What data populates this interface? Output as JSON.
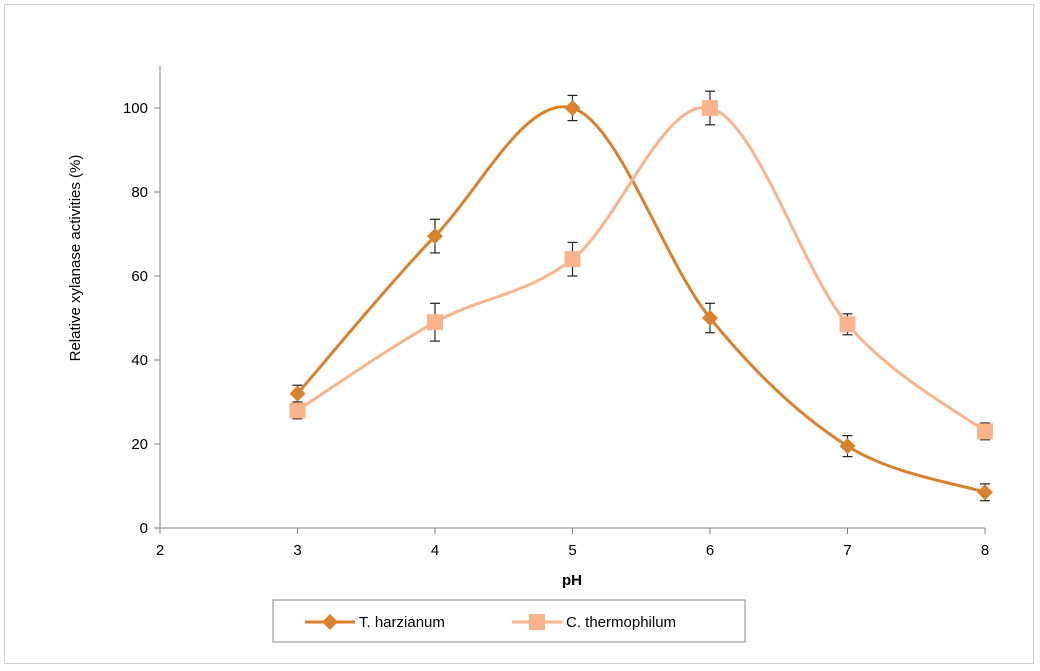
{
  "chart_data": {
    "type": "line",
    "title": "",
    "xlabel": "pH",
    "ylabel": "Relative xylanase activities (%)",
    "xlim": [
      2,
      8
    ],
    "ylim": [
      0,
      110
    ],
    "x_ticks": [
      2,
      3,
      4,
      5,
      6,
      7,
      8
    ],
    "y_ticks": [
      0,
      20,
      40,
      60,
      80,
      100
    ],
    "grid": false,
    "smooth": true,
    "legend_position": "bottom",
    "series": [
      {
        "name": "T. harzianum",
        "color": "#d9822b",
        "marker": "diamond",
        "x": [
          3,
          4,
          5,
          6,
          7,
          8
        ],
        "y": [
          32,
          69.5,
          100,
          50,
          19.5,
          8.5
        ],
        "error": [
          2,
          4,
          3,
          3.5,
          2.5,
          2
        ]
      },
      {
        "name": "C. thermophilum",
        "color": "#f9b48c",
        "marker": "square",
        "x": [
          3,
          4,
          5,
          6,
          7,
          8
        ],
        "y": [
          28,
          49,
          64,
          100,
          48.5,
          23
        ],
        "error": [
          2,
          4.5,
          4,
          4,
          2.5,
          2
        ]
      }
    ]
  }
}
